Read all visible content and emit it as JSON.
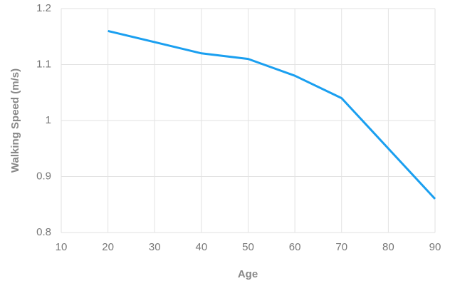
{
  "chart_data": {
    "type": "line",
    "x_label": "Age",
    "y_label": "Walking Speed (m/s)",
    "x": [
      20,
      30,
      40,
      50,
      60,
      70,
      80,
      90
    ],
    "values": [
      1.16,
      1.14,
      1.12,
      1.11,
      1.08,
      1.04,
      0.95,
      0.86
    ],
    "color": "#1a9ff0",
    "xlim": [
      10,
      90
    ],
    "xticks": [
      10,
      20,
      30,
      40,
      50,
      60,
      70,
      80,
      90
    ],
    "ylim": [
      0.8,
      1.2
    ],
    "yticks": [
      0.8,
      0.9,
      1,
      1.1,
      1.2
    ],
    "grid": true
  }
}
